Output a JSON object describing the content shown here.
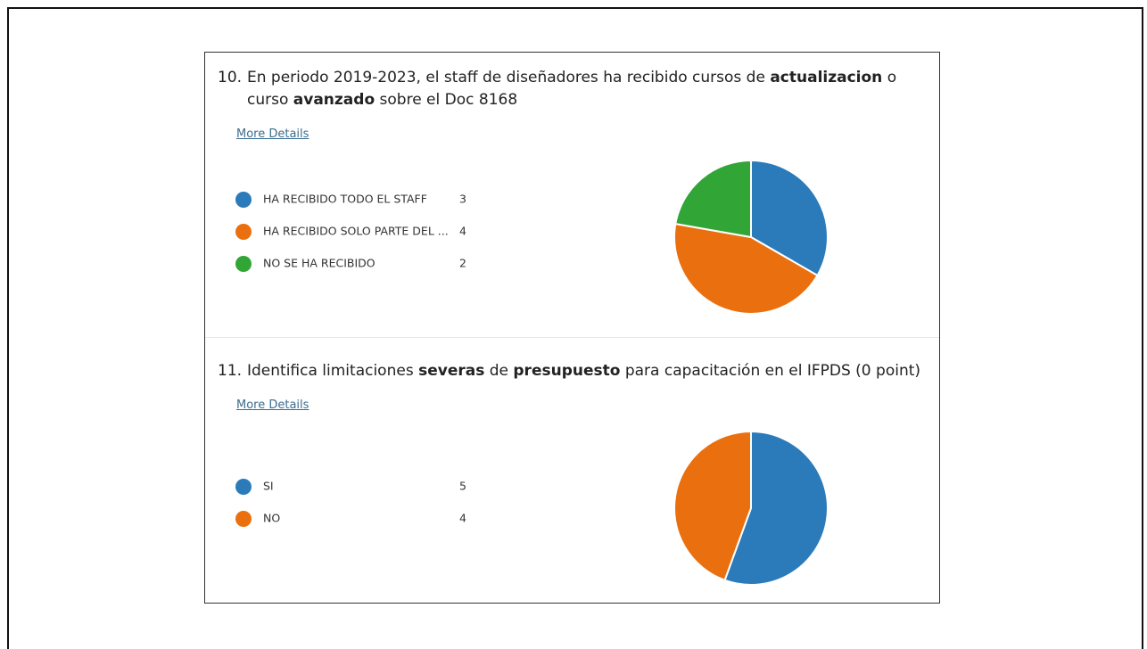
{
  "chart_data": [
    {
      "type": "pie",
      "number": "10.",
      "title_parts": [
        {
          "text": "En periodo 2019-2023, el staff de diseñadores ha recibido cursos de ",
          "bold": false
        },
        {
          "text": "actualizacion",
          "bold": true
        },
        {
          "text": " o curso ",
          "bold": false
        },
        {
          "text": "avanzado",
          "bold": true
        },
        {
          "text": " sobre el Doc 8168",
          "bold": false
        }
      ],
      "link": "More Details",
      "categories": [
        "HA RECIBIDO TODO EL STAFF",
        "HA RECIBIDO SOLO PARTE DEL ...",
        "NO SE HA RECIBIDO"
      ],
      "values": [
        3,
        4,
        2
      ],
      "colors": [
        "#2b7bba",
        "#ea700f",
        "#32a537"
      ]
    },
    {
      "type": "pie",
      "number": "11.",
      "title_parts": [
        {
          "text": "Identifica limitaciones ",
          "bold": false
        },
        {
          "text": "severas",
          "bold": true
        },
        {
          "text": " de ",
          "bold": false
        },
        {
          "text": "presupuesto",
          "bold": true
        },
        {
          "text": " para capacitación en el IFPDS (0 point)",
          "bold": false
        }
      ],
      "link": "More Details",
      "categories": [
        "SI",
        "NO"
      ],
      "values": [
        5,
        4
      ],
      "colors": [
        "#2b7bba",
        "#ea700f"
      ]
    }
  ]
}
